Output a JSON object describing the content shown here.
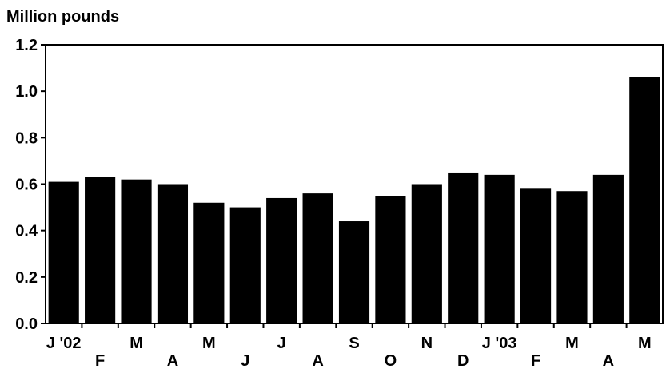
{
  "chart_data": {
    "type": "bar",
    "ylabel": "Million pounds",
    "xlabel": "",
    "title": "",
    "ylim": [
      0,
      1.2
    ],
    "yticks": [
      "0.0",
      "0.2",
      "0.4",
      "0.6",
      "0.8",
      "1.0",
      "1.2"
    ],
    "categories": [
      "J '02",
      "F",
      "M",
      "A",
      "M",
      "J",
      "J",
      "A",
      "S",
      "O",
      "N",
      "D",
      "J '03",
      "F",
      "M",
      "A",
      "M"
    ],
    "values": [
      0.61,
      0.63,
      0.62,
      0.6,
      0.52,
      0.5,
      0.54,
      0.56,
      0.44,
      0.55,
      0.6,
      0.65,
      0.64,
      0.58,
      0.57,
      0.64,
      1.06
    ],
    "bar_color": "#000000",
    "grid": false,
    "legend": "none"
  }
}
